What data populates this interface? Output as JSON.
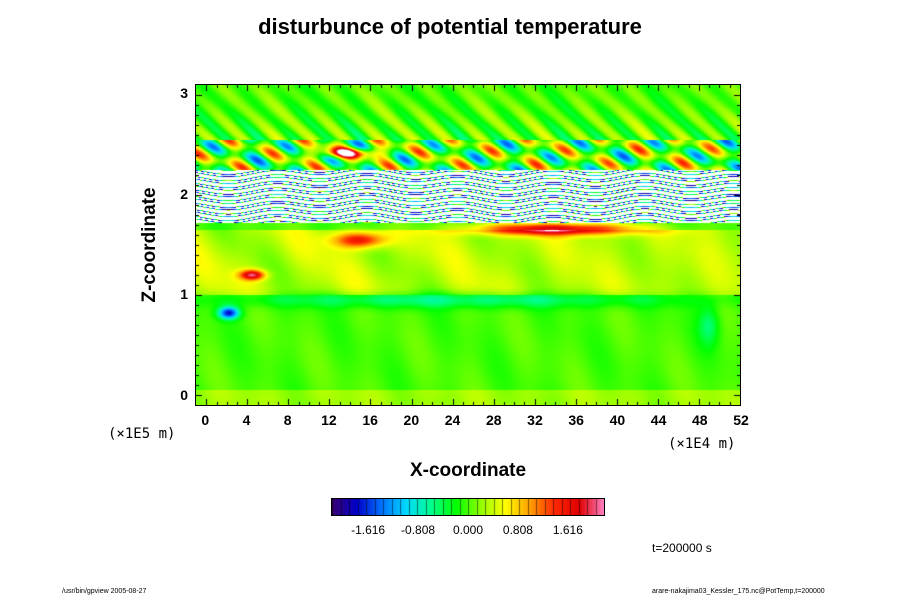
{
  "chart_data": {
    "type": "heatmap",
    "title": "disturbunce of potential temperature",
    "xlabel": "X-coordinate",
    "ylabel": "Z-coordinate",
    "x_scale_label": "(×1E4 m)",
    "y_scale_label": "(×1E5 m)",
    "xlim": [
      -1,
      52
    ],
    "ylim": [
      -0.1,
      3.1
    ],
    "x_ticks": [
      "0",
      "4",
      "8",
      "12",
      "16",
      "20",
      "24",
      "28",
      "32",
      "36",
      "40",
      "44",
      "48",
      "52"
    ],
    "y_ticks": [
      "0",
      "1",
      "2",
      "3"
    ],
    "colorbar": {
      "range": [
        -2.2,
        2.2
      ],
      "ticks": [
        "-1.616",
        "-0.808",
        "0.000",
        "0.808",
        "1.616"
      ],
      "tick_values": [
        -1.616,
        -0.808,
        0.0,
        0.808,
        1.616
      ],
      "colors": [
        "#3b0070",
        "#0000c8",
        "#0070ff",
        "#00d8ff",
        "#00ff90",
        "#00ff00",
        "#90ff00",
        "#ffff00",
        "#ffa000",
        "#ff2800",
        "#e00000",
        "#ff80c0"
      ]
    },
    "time_label": "t=200000 s"
  },
  "footer": {
    "left": "/usr/bin/gpview 2005-08-27",
    "right": "arare-nakajima03_Kessler_175.nc@PotTemp,t=200000"
  }
}
